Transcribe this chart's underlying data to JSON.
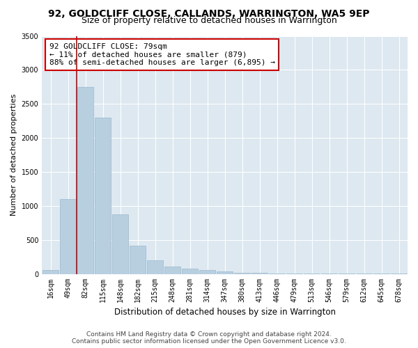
{
  "title": "92, GOLDCLIFF CLOSE, CALLANDS, WARRINGTON, WA5 9EP",
  "subtitle": "Size of property relative to detached houses in Warrington",
  "xlabel": "Distribution of detached houses by size in Warrington",
  "ylabel": "Number of detached properties",
  "categories": [
    "16sqm",
    "49sqm",
    "82sqm",
    "115sqm",
    "148sqm",
    "182sqm",
    "215sqm",
    "248sqm",
    "281sqm",
    "314sqm",
    "347sqm",
    "380sqm",
    "413sqm",
    "446sqm",
    "479sqm",
    "513sqm",
    "546sqm",
    "579sqm",
    "612sqm",
    "645sqm",
    "678sqm"
  ],
  "values": [
    55,
    1100,
    2750,
    2300,
    880,
    420,
    200,
    110,
    75,
    55,
    35,
    20,
    15,
    10,
    8,
    5,
    3,
    2,
    2,
    1,
    1
  ],
  "bar_color": "#b8cfe0",
  "bar_edge_color": "#9ab8d0",
  "background_color": "#dde8f0",
  "figure_background": "#ffffff",
  "grid_color": "#ffffff",
  "annotation_text": "92 GOLDCLIFF CLOSE: 79sqm\n← 11% of detached houses are smaller (879)\n88% of semi-detached houses are larger (6,895) →",
  "annotation_box_color": "#ffffff",
  "annotation_box_edge_color": "#cc0000",
  "vline_x_index": 1.5,
  "vline_color": "#cc0000",
  "ylim": [
    0,
    3500
  ],
  "yticks": [
    0,
    500,
    1000,
    1500,
    2000,
    2500,
    3000,
    3500
  ],
  "footer": "Contains HM Land Registry data © Crown copyright and database right 2024.\nContains public sector information licensed under the Open Government Licence v3.0.",
  "title_fontsize": 10,
  "subtitle_fontsize": 9,
  "xlabel_fontsize": 8.5,
  "ylabel_fontsize": 8,
  "tick_fontsize": 7,
  "annotation_fontsize": 8,
  "footer_fontsize": 6.5
}
